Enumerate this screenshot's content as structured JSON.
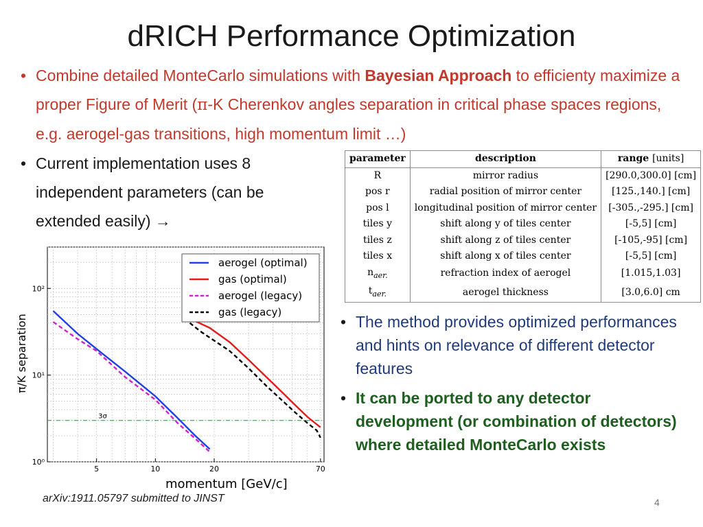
{
  "title": "dRICH Performance Optimization",
  "bullets": {
    "b1_part1": "Combine detailed MonteCarlo simulations with ",
    "b1_bold": "Bayesian Approach",
    "b1_part2": " to efficienty maximize a proper Figure of Merit (",
    "b1_pi": "π",
    "b1_part3": "-K Cherenkov angles separation in critical phase spaces regions, e.g. aerogel-gas transitions, high momentum limit …)",
    "b2": "Current implementation uses 8 independent parameters (can be extended easily) →",
    "b3": "The method provides optimized performances and hints on relevance of different detector features",
    "b4": "It can be ported to any detector development (or combination of detectors) where detailed MonteCarlo exists"
  },
  "bullet_symbol": "•",
  "table": {
    "headers": {
      "parameter": "parameter",
      "description": "description",
      "range": "range",
      "units": "[units]"
    },
    "rows": [
      {
        "parameter": "R",
        "description": "mirror radius",
        "range": "[290.0,300.0] [cm]"
      },
      {
        "parameter": "pos r",
        "description": "radial position of mirror center",
        "range": "[125.,140.] [cm]"
      },
      {
        "parameter": "pos l",
        "description": "longitudinal position of mirror center",
        "range": "[-305.,-295.] [cm]"
      },
      {
        "parameter": "tiles y",
        "description": "shift along y of tiles center",
        "range": "[-5,5] [cm]"
      },
      {
        "parameter": "tiles z",
        "description": "shift along z of tiles center",
        "range": "[-105,-95] [cm]"
      },
      {
        "parameter": "tiles x",
        "description": "shift along x of tiles center",
        "range": "[-5,5] [cm]"
      },
      {
        "parameter": "naer.",
        "description": "refraction index of aerogel",
        "range": "[1.015,1.03]"
      },
      {
        "parameter": "taer.",
        "description": "aerogel thickness",
        "range": "[3.0,6.0] cm"
      }
    ]
  },
  "footer": "arXiv:1911.05797 submitted to JINST",
  "page_number": "4",
  "colors": {
    "red_text": "#c0392b",
    "blue_text": "#1f3a7a",
    "green_text": "#1e5e1e",
    "blue_line": "#1f3fe0",
    "red_line": "#e41a1a",
    "magenta_line": "#d020d0",
    "black_line": "#000000",
    "threshold_line": "#3a8a3a"
  },
  "chart_data": {
    "type": "line",
    "title": "",
    "xlabel": "momentum [GeV/c]",
    "ylabel": "π/K separation",
    "xscale": "log",
    "yscale": "log",
    "xlim": [
      2.8,
      73
    ],
    "ylim": [
      1,
      300
    ],
    "xticks": [
      5,
      10,
      20,
      70
    ],
    "yticks": [
      1,
      10,
      100
    ],
    "ytick_labels": [
      "10⁰",
      "10¹",
      "10²"
    ],
    "grid": true,
    "legend_position": "top-right",
    "threshold": {
      "value": 3,
      "label": "3σ"
    },
    "series": [
      {
        "name": "aerogel (optimal)",
        "color": "#1f3fe0",
        "dash": "solid",
        "x": [
          3,
          4,
          5,
          7,
          10,
          13,
          16,
          19
        ],
        "y": [
          55,
          30,
          20,
          11,
          5.7,
          3.2,
          2.0,
          1.4
        ]
      },
      {
        "name": "gas (optimal)",
        "color": "#e41a1a",
        "dash": "solid",
        "x": [
          14,
          16,
          19,
          24,
          30,
          37,
          45,
          52,
          60,
          67,
          70
        ],
        "y": [
          46,
          42,
          35,
          24,
          15,
          9.5,
          6.2,
          4.5,
          3.3,
          2.7,
          2.5
        ]
      },
      {
        "name": "aerogel (legacy)",
        "color": "#d020d0",
        "dash": "dashed",
        "x": [
          3,
          4,
          5,
          7,
          10,
          13,
          16,
          19
        ],
        "y": [
          41,
          26,
          19,
          9.5,
          5.2,
          2.8,
          1.85,
          1.3
        ]
      },
      {
        "name": "gas (legacy)",
        "color": "#000000",
        "dash": "dashed",
        "x": [
          15,
          17,
          19,
          24,
          30,
          37,
          45,
          52,
          60,
          67,
          70
        ],
        "y": [
          40,
          32,
          27,
          19,
          12,
          7.5,
          5.0,
          3.7,
          2.8,
          2.3,
          1.9
        ]
      }
    ]
  }
}
